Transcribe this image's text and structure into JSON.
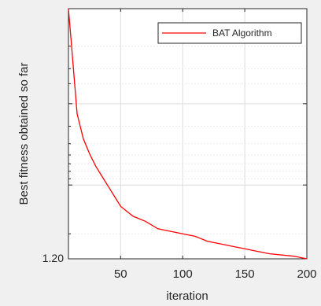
{
  "chart_data": {
    "type": "line",
    "title": "",
    "xlabel": "iteration",
    "ylabel": "Best fitness obtained so far",
    "xlim": [
      8,
      200
    ],
    "ylim_description": "log scale; bottom labeled 1.20",
    "y_scale": "log",
    "x_ticks": [
      50,
      100,
      150,
      200
    ],
    "x_tick_labels": [
      "50",
      "100",
      "150",
      "200"
    ],
    "y_tick_labels": [
      "1.20"
    ],
    "grid": true,
    "legend_position": "top-right",
    "series": [
      {
        "name": "BAT Algorithm",
        "color": "#ff0000",
        "x": [
          8,
          10,
          15,
          20,
          25,
          30,
          35,
          40,
          45,
          50,
          55,
          60,
          70,
          80,
          90,
          100,
          110,
          120,
          130,
          140,
          150,
          160,
          170,
          180,
          190,
          200
        ],
        "y_norm_from_top": [
          0.0,
          0.12,
          0.42,
          0.52,
          0.58,
          0.63,
          0.67,
          0.71,
          0.75,
          0.79,
          0.81,
          0.83,
          0.85,
          0.88,
          0.89,
          0.9,
          0.91,
          0.93,
          0.94,
          0.95,
          0.96,
          0.97,
          0.98,
          0.985,
          0.99,
          1.0
        ]
      }
    ]
  }
}
